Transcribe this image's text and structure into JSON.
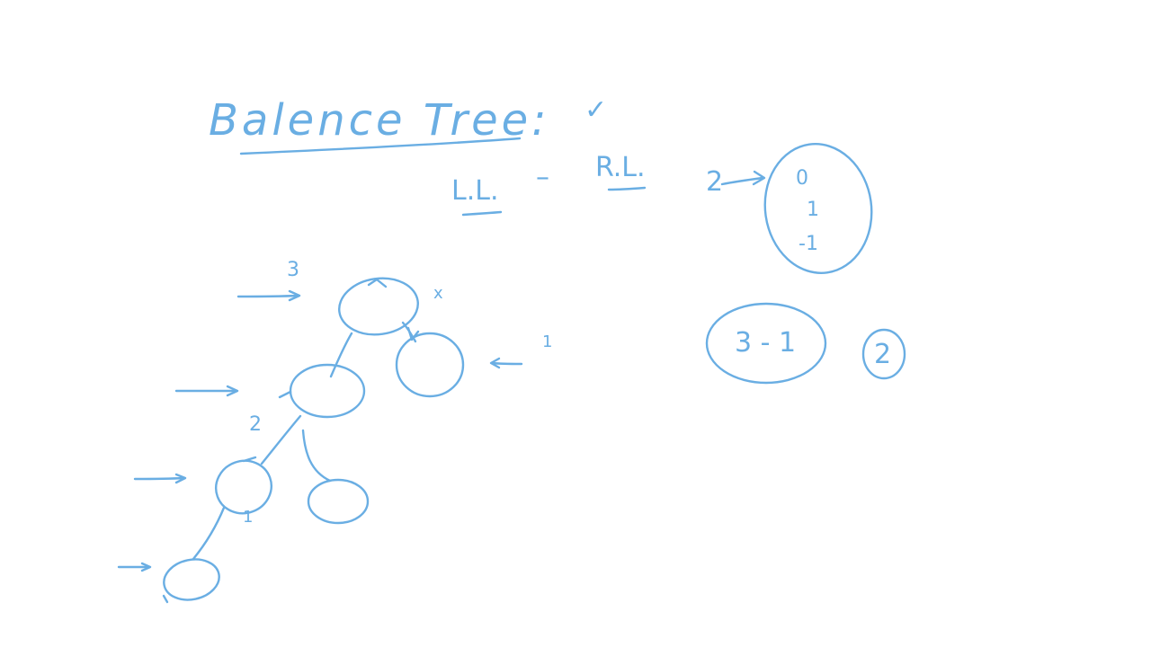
{
  "heading": {
    "title": "Balence Tree:",
    "title_mark": "✓"
  },
  "rotations": {
    "left": "L.L.",
    "dash": "–",
    "right": "R.L.",
    "count": "2"
  },
  "balance_values": [
    "0",
    "1",
    "-1"
  ],
  "expression": {
    "text": "3 - 1",
    "result": "2"
  },
  "tree_labels": {
    "root_height": "3",
    "root_mark": "x",
    "right_height": "1",
    "left_height": "2",
    "leaf_mark": "1"
  },
  "ink_color": "#6aaee3"
}
